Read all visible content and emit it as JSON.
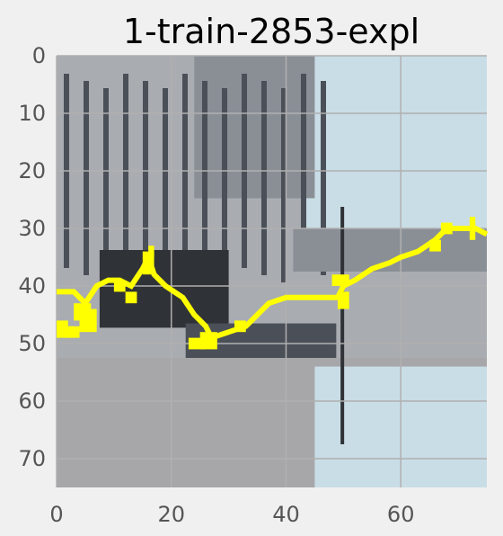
{
  "figure": {
    "title": "1-train-2853-expl",
    "x_ticks": [
      "0",
      "20",
      "40",
      "60"
    ],
    "y_ticks": [
      "0",
      "10",
      "20",
      "30",
      "40",
      "50",
      "60",
      "70"
    ],
    "x_tick_values": [
      0,
      20,
      40,
      60
    ],
    "y_tick_values": [
      0,
      10,
      20,
      30,
      40,
      50,
      60,
      70
    ],
    "image_size": [
      75,
      75
    ],
    "background_color": "#f0f0f0",
    "grid_color": "#b0b0b0",
    "overlay_color": "#ffff00"
  },
  "image": {
    "description_icon": "street-photo-pixelated-grayscale",
    "palette": {
      "sky": "#c9dde6",
      "light": "#a9acb1",
      "mid": "#8a8f96",
      "dark": "#4b5058",
      "darkest": "#2f3237",
      "road": "#a7a7a9"
    }
  },
  "overlay": {
    "polyline": [
      [
        0,
        41
      ],
      [
        3,
        41
      ],
      [
        5,
        43
      ],
      [
        7,
        40
      ],
      [
        9,
        39
      ],
      [
        11,
        39
      ],
      [
        13,
        40
      ],
      [
        15,
        37
      ],
      [
        16,
        35
      ],
      [
        17,
        38
      ],
      [
        19,
        40
      ],
      [
        22,
        42
      ],
      [
        24,
        45
      ],
      [
        26,
        47
      ],
      [
        27,
        49
      ],
      [
        30,
        48
      ],
      [
        33,
        47
      ],
      [
        35,
        45
      ],
      [
        37,
        43
      ],
      [
        40,
        42
      ],
      [
        45,
        42
      ],
      [
        49,
        42
      ],
      [
        50,
        40
      ],
      [
        52,
        39
      ],
      [
        55,
        37
      ],
      [
        58,
        36
      ],
      [
        60,
        35
      ],
      [
        63,
        34
      ],
      [
        66,
        32
      ],
      [
        68,
        30
      ],
      [
        71,
        30
      ],
      [
        73,
        30
      ],
      [
        75,
        31
      ]
    ],
    "blobs": [
      [
        0,
        46,
        2,
        3
      ],
      [
        1,
        47,
        2,
        2
      ],
      [
        3,
        43,
        3,
        3
      ],
      [
        4,
        44,
        3,
        4
      ],
      [
        2,
        47,
        2,
        2
      ],
      [
        10,
        39,
        2,
        2
      ],
      [
        12,
        41,
        2,
        2
      ],
      [
        15,
        34,
        2,
        4
      ],
      [
        16,
        33,
        1,
        2
      ],
      [
        23,
        49,
        3,
        2
      ],
      [
        25,
        48,
        3,
        3
      ],
      [
        31,
        46,
        2,
        2
      ],
      [
        48,
        38,
        3,
        2
      ],
      [
        49,
        41,
        2,
        3
      ],
      [
        65,
        32,
        2,
        2
      ],
      [
        67,
        29,
        2,
        2
      ],
      [
        72,
        28,
        1,
        4
      ]
    ]
  }
}
